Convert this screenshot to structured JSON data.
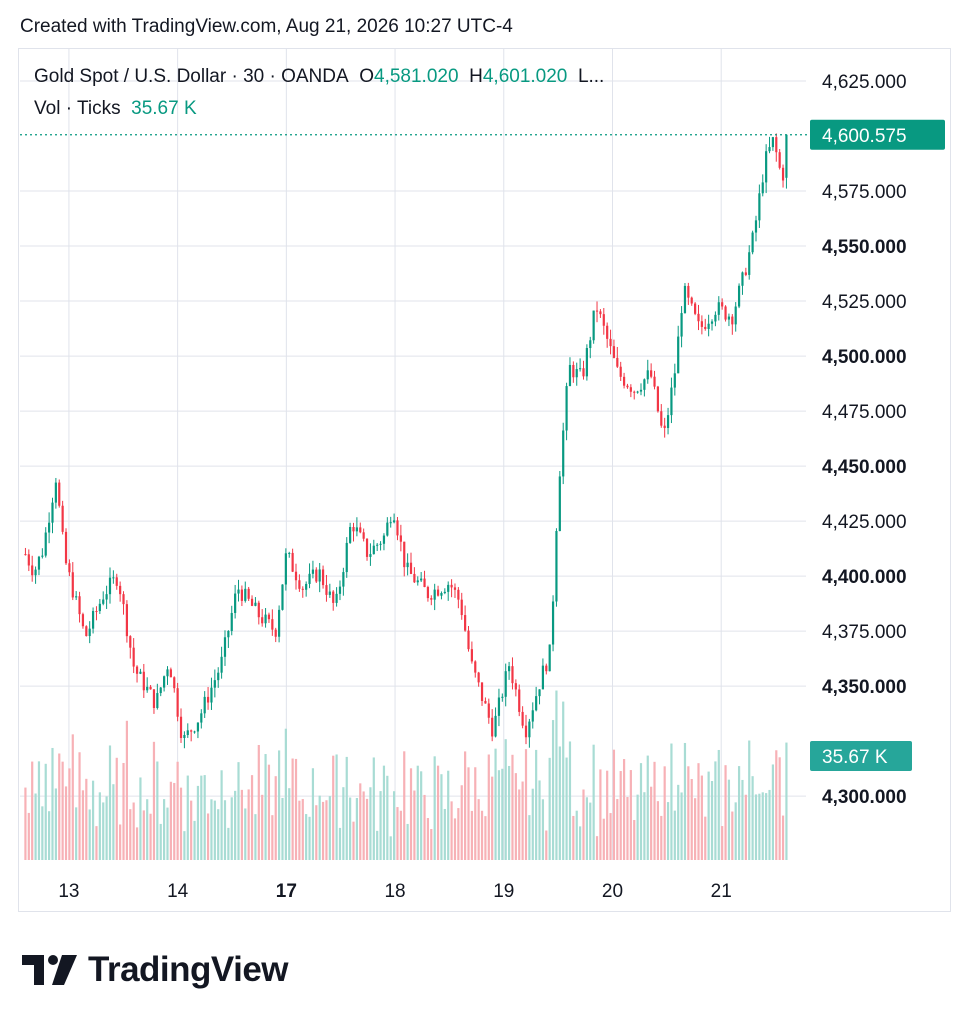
{
  "header": {
    "created_text": "Created with TradingView.com, Aug 21, 2026 10:27 UTC-4"
  },
  "legend": {
    "symbol": "Gold Spot / U.S. Dollar · 30 · OANDA",
    "open_label": "O",
    "open_value": "4,581.020",
    "high_label": "H",
    "high_value": "4,601.020",
    "more": "L...",
    "volume_label": "Vol · Ticks",
    "volume_value": "35.67 K"
  },
  "colors": {
    "up": "#089981",
    "down": "#f23645",
    "vol_up": "#a8dcd4",
    "vol_down": "#f7b1b6",
    "grid": "#e0e3eb",
    "text": "#131722",
    "price_badge": "#089981",
    "volume_badge": "#26a69a"
  },
  "footer": {
    "brand": "TradingView",
    "logo_icon": "tradingview-logo-icon"
  },
  "chart_data": {
    "type": "candlestick",
    "title": "Gold Spot / U.S. Dollar · 30 · OANDA",
    "price_axis": {
      "ticks": [
        4625,
        4575,
        4550,
        4525,
        4500,
        4475,
        4450,
        4425,
        4400,
        4375,
        4350,
        4300
      ],
      "tick_labels": [
        "4,625.000",
        "4,575.000",
        "4,550.000",
        "4,525.000",
        "4,500.000",
        "4,475.000",
        "4,450.000",
        "4,425.000",
        "4,400.000",
        "4,375.000",
        "4,350.000",
        "4,300.000"
      ],
      "bold_ticks": [
        4550,
        4500,
        4450,
        4400,
        4350,
        4300
      ],
      "ylim": [
        4271,
        4640
      ]
    },
    "time_axis": {
      "labels": [
        "13",
        "14",
        "17",
        "18",
        "19",
        "20",
        "21"
      ],
      "bold_labels": [
        "17"
      ],
      "session_positions": [
        0.4,
        1.4,
        2.4,
        3.4,
        4.4,
        5.4,
        6.4
      ]
    },
    "last_price": 4600.575,
    "last_price_label": "4,600.575",
    "last_volume_label": "35.67 K",
    "volume_max": 36000,
    "key_points": [
      {
        "t": 0.0,
        "p": 4410
      },
      {
        "t": 0.08,
        "p": 4402
      },
      {
        "t": 0.16,
        "p": 4412
      },
      {
        "t": 0.28,
        "p": 4445
      },
      {
        "t": 0.36,
        "p": 4408
      },
      {
        "t": 0.55,
        "p": 4372
      },
      {
        "t": 0.72,
        "p": 4392
      },
      {
        "t": 0.85,
        "p": 4400
      },
      {
        "t": 1.0,
        "p": 4358
      },
      {
        "t": 1.2,
        "p": 4342
      },
      {
        "t": 1.32,
        "p": 4362
      },
      {
        "t": 1.45,
        "p": 4325
      },
      {
        "t": 1.6,
        "p": 4336
      },
      {
        "t": 1.8,
        "p": 4360
      },
      {
        "t": 1.95,
        "p": 4395
      },
      {
        "t": 2.15,
        "p": 4382
      },
      {
        "t": 2.3,
        "p": 4375
      },
      {
        "t": 2.4,
        "p": 4410
      },
      {
        "t": 2.55,
        "p": 4395
      },
      {
        "t": 2.7,
        "p": 4402
      },
      {
        "t": 2.85,
        "p": 4385
      },
      {
        "t": 3.0,
        "p": 4425
      },
      {
        "t": 3.15,
        "p": 4410
      },
      {
        "t": 3.3,
        "p": 4418
      },
      {
        "t": 3.38,
        "p": 4432
      },
      {
        "t": 3.5,
        "p": 4403
      },
      {
        "t": 3.7,
        "p": 4392
      },
      {
        "t": 3.9,
        "p": 4397
      },
      {
        "t": 4.0,
        "p": 4388
      },
      {
        "t": 4.1,
        "p": 4360
      },
      {
        "t": 4.3,
        "p": 4330
      },
      {
        "t": 4.45,
        "p": 4360
      },
      {
        "t": 4.6,
        "p": 4330
      },
      {
        "t": 4.75,
        "p": 4355
      },
      {
        "t": 4.83,
        "p": 4366
      },
      {
        "t": 4.9,
        "p": 4440
      },
      {
        "t": 5.0,
        "p": 4495
      },
      {
        "t": 5.12,
        "p": 4490
      },
      {
        "t": 5.25,
        "p": 4523
      },
      {
        "t": 5.45,
        "p": 4492
      },
      {
        "t": 5.6,
        "p": 4485
      },
      {
        "t": 5.75,
        "p": 4492
      },
      {
        "t": 5.87,
        "p": 4462
      },
      {
        "t": 5.98,
        "p": 4495
      },
      {
        "t": 6.05,
        "p": 4530
      },
      {
        "t": 6.2,
        "p": 4512
      },
      {
        "t": 6.35,
        "p": 4522
      },
      {
        "t": 6.5,
        "p": 4518
      },
      {
        "t": 6.6,
        "p": 4535
      },
      {
        "t": 6.7,
        "p": 4555
      },
      {
        "t": 6.8,
        "p": 4588
      },
      {
        "t": 6.88,
        "p": 4598
      },
      {
        "t": 6.96,
        "p": 4580
      },
      {
        "t": 7.0,
        "p": 4592
      }
    ]
  }
}
